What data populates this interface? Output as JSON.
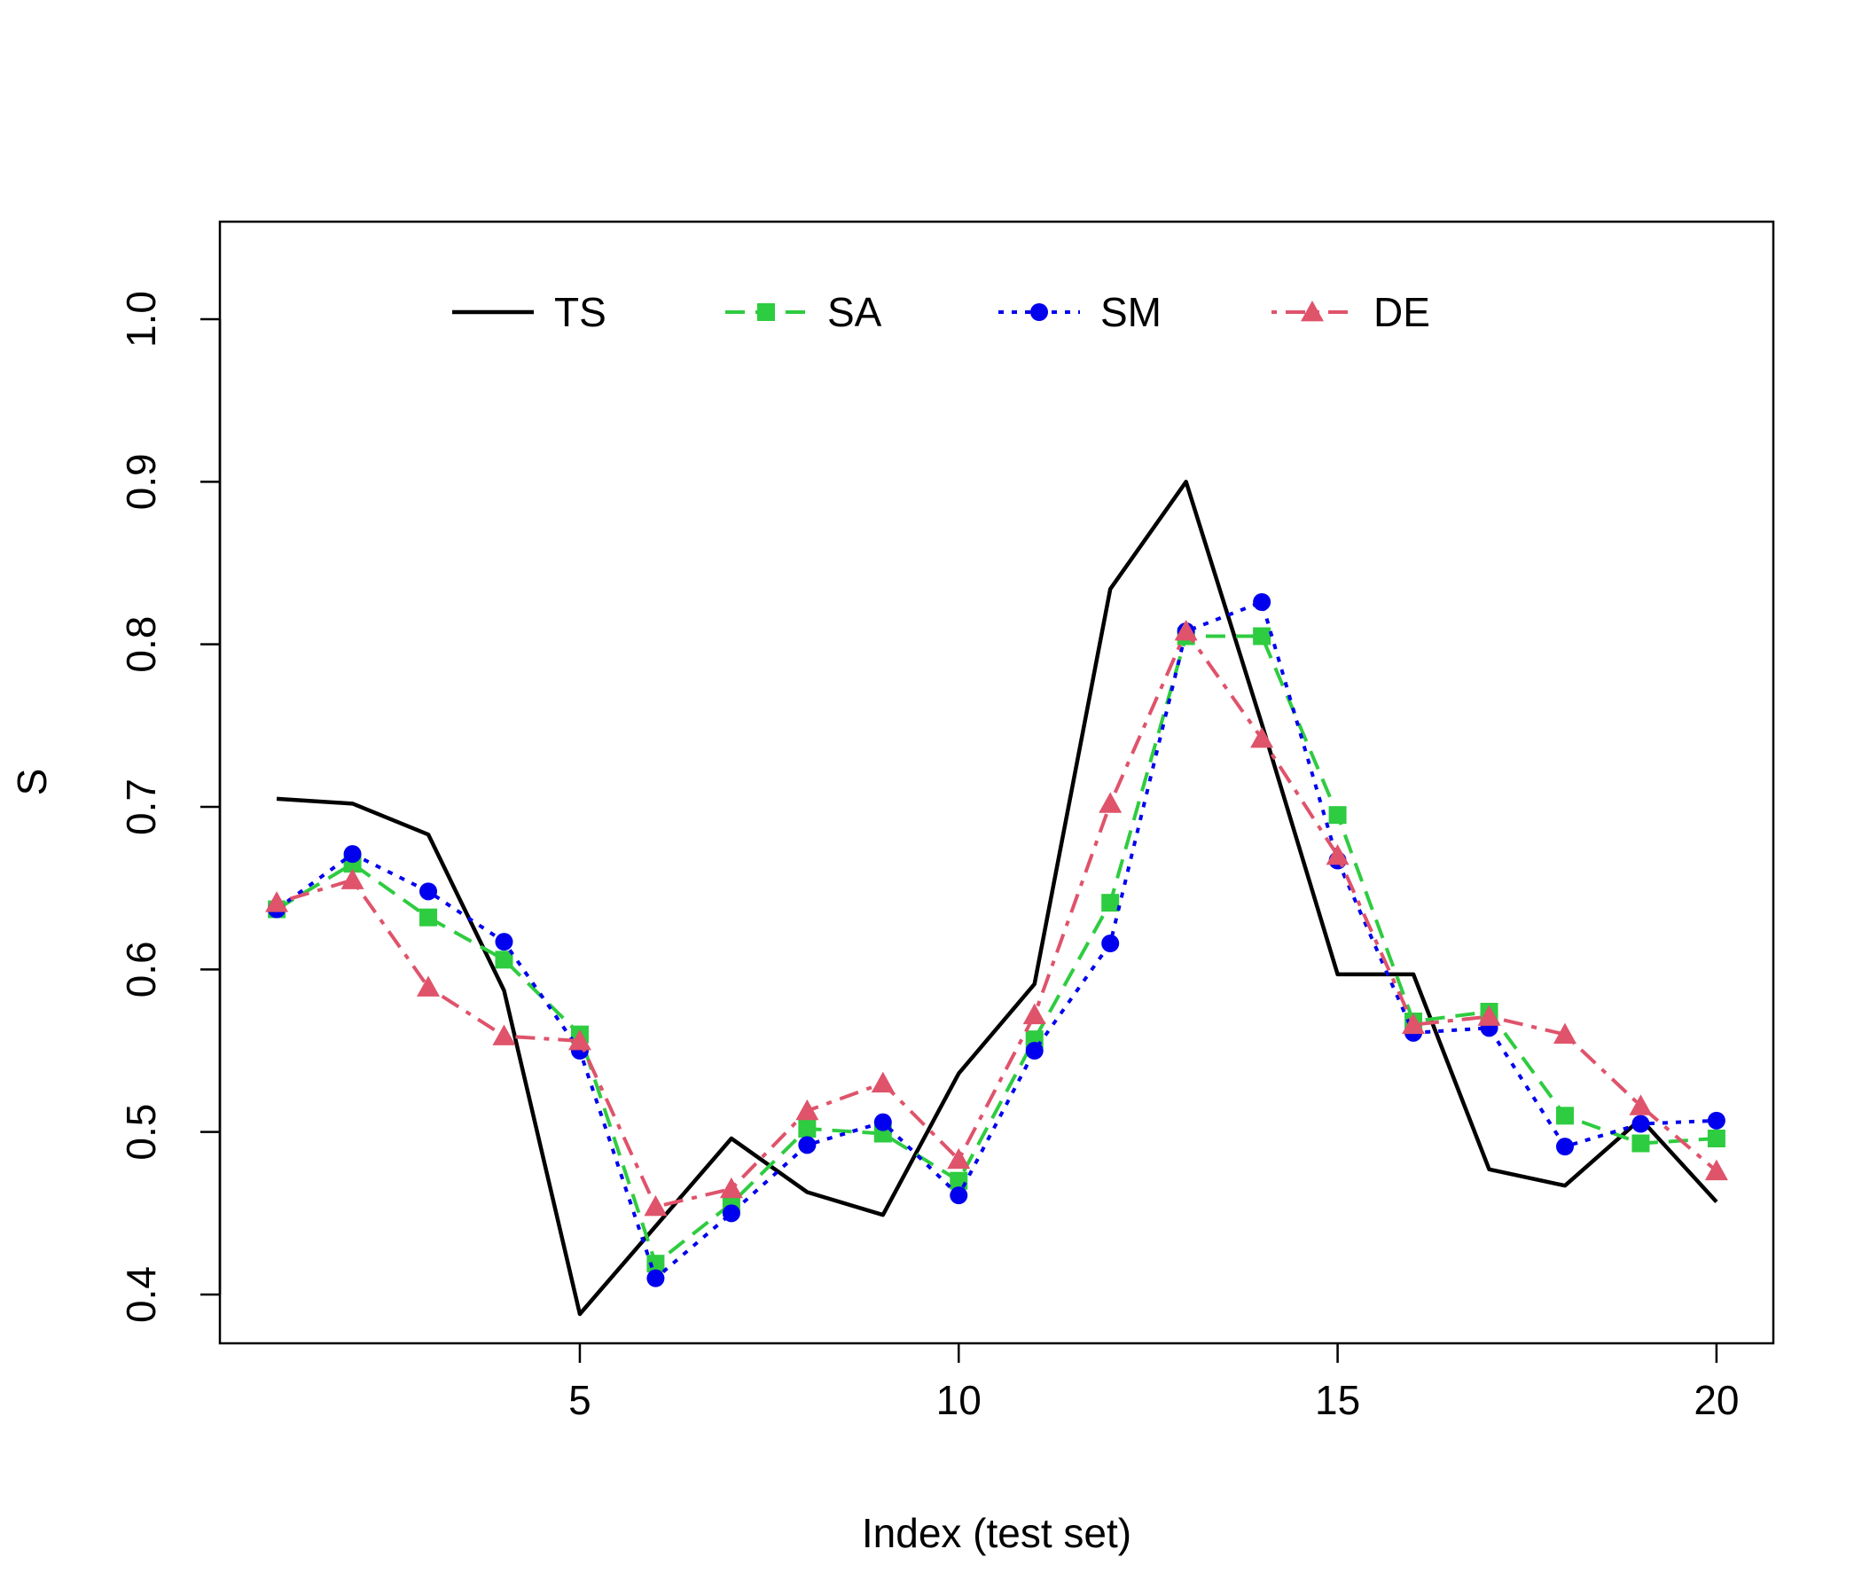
{
  "chart_data": {
    "type": "line",
    "title": "",
    "xlabel": "Index (test set)",
    "ylabel": "S",
    "xlim": [
      0.25,
      20.75
    ],
    "ylim": [
      0.37,
      1.06
    ],
    "x_ticks": [
      5,
      10,
      15,
      20
    ],
    "y_ticks": [
      0.4,
      0.5,
      0.6,
      0.7,
      0.8,
      0.9,
      1.0
    ],
    "x_tick_labels": [
      "5",
      "10",
      "15",
      "20"
    ],
    "y_tick_labels": [
      "0.4",
      "0.5",
      "0.6",
      "0.7",
      "0.8",
      "0.9",
      "1.0"
    ],
    "legend_position": "top",
    "grid": false,
    "x": [
      1,
      2,
      3,
      4,
      5,
      6,
      7,
      8,
      9,
      10,
      11,
      12,
      13,
      14,
      15,
      16,
      17,
      18,
      19,
      20
    ],
    "series": [
      {
        "name": "TS",
        "color": "#000000",
        "dash": "solid",
        "marker": "none",
        "values": [
          0.705,
          0.702,
          0.683,
          0.587,
          0.388,
          0.442,
          0.496,
          0.463,
          0.449,
          0.536,
          0.591,
          0.834,
          0.9,
          0.751,
          0.597,
          0.597,
          0.477,
          0.467,
          0.508,
          0.457
        ]
      },
      {
        "name": "SA",
        "color": "#2ecc40",
        "dash": "dashed",
        "marker": "square",
        "values": [
          0.637,
          0.665,
          0.632,
          0.606,
          0.56,
          0.419,
          0.456,
          0.502,
          0.499,
          0.47,
          0.557,
          0.641,
          0.805,
          0.805,
          0.695,
          0.568,
          0.574,
          0.51,
          0.493,
          0.496
        ]
      },
      {
        "name": "SM",
        "color": "#0000ee",
        "dash": "dotted",
        "marker": "circle",
        "values": [
          0.637,
          0.671,
          0.648,
          0.617,
          0.55,
          0.41,
          0.45,
          0.492,
          0.506,
          0.461,
          0.55,
          0.616,
          0.808,
          0.826,
          0.667,
          0.561,
          0.564,
          0.491,
          0.505,
          0.507
        ]
      },
      {
        "name": "DE",
        "color": "#df536b",
        "dash": "dotdash",
        "marker": "triangle",
        "values": [
          0.641,
          0.655,
          0.589,
          0.559,
          0.556,
          0.454,
          0.465,
          0.513,
          0.53,
          0.483,
          0.572,
          0.702,
          0.808,
          0.742,
          0.67,
          0.566,
          0.571,
          0.56,
          0.516,
          0.476
        ]
      }
    ]
  }
}
